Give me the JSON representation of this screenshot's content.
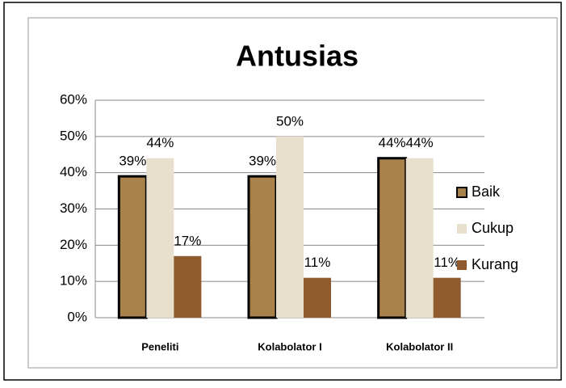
{
  "chart_data": {
    "type": "bar",
    "title": "Antusias",
    "categories": [
      "Peneliti",
      "Kolabolator I",
      "Kolabolator II"
    ],
    "series": [
      {
        "name": "Baik",
        "color": "#a8824a",
        "values": [
          39,
          39,
          44
        ],
        "value_labels": [
          "39%",
          "39%",
          "44%"
        ]
      },
      {
        "name": "Cukup",
        "color": "#e8dfcc",
        "values": [
          44,
          50,
          44
        ],
        "value_labels": [
          "44%",
          "50%",
          "44%"
        ]
      },
      {
        "name": "Kurang",
        "color": "#8e5a2e",
        "values": [
          17,
          11,
          11
        ],
        "value_labels": [
          "17%",
          "11%",
          "11%"
        ]
      }
    ],
    "ylim": [
      0,
      60
    ],
    "yticks": [
      {
        "value": 0,
        "label": "0%"
      },
      {
        "value": 10,
        "label": "10%"
      },
      {
        "value": 20,
        "label": "20%"
      },
      {
        "value": 30,
        "label": "30%"
      },
      {
        "value": 40,
        "label": "40%"
      },
      {
        "value": 50,
        "label": "50%"
      },
      {
        "value": 60,
        "label": "60%"
      }
    ],
    "grid": true,
    "legend": "right"
  }
}
